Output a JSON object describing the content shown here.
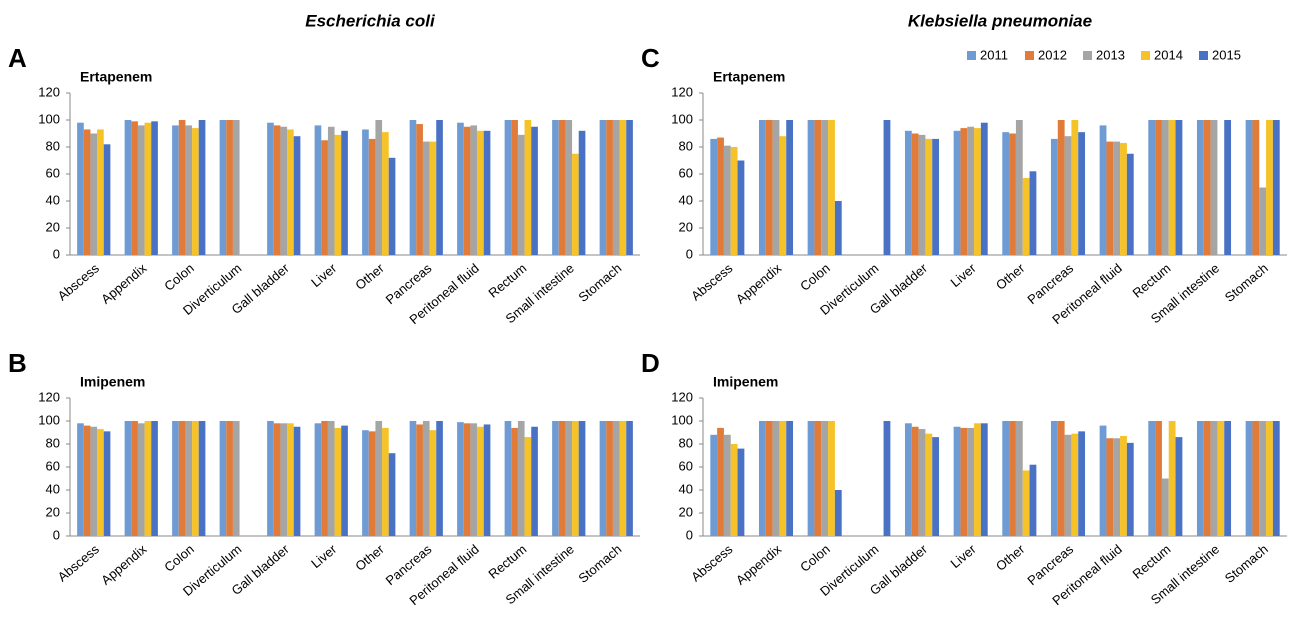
{
  "headers": [
    "Escherichia coli",
    "Klebsiella pneumoniae"
  ],
  "chart_data": [
    {
      "type": "bar",
      "panel": "A",
      "title": "Ertapenem",
      "categories": [
        "Abscess",
        "Appendix",
        "Colon",
        "Diverticulum",
        "Gall bladder",
        "Liver",
        "Other",
        "Pancreas",
        "Peritoneal fluid",
        "Rectum",
        "Small intestine",
        "Stomach"
      ],
      "ylim": [
        0,
        120
      ],
      "yticks": [
        0,
        20,
        40,
        60,
        80,
        100,
        120
      ],
      "series": [
        {
          "name": "2011",
          "color": "#6f9bd4",
          "values": [
            98,
            100,
            96,
            100,
            98,
            96,
            93,
            100,
            98,
            100,
            100,
            100
          ]
        },
        {
          "name": "2012",
          "color": "#e07b39",
          "values": [
            93,
            99,
            100,
            100,
            96,
            85,
            86,
            97,
            95,
            100,
            100,
            100
          ]
        },
        {
          "name": "2013",
          "color": "#a5a5a5",
          "values": [
            90,
            96,
            96,
            100,
            95,
            95,
            100,
            84,
            96,
            89,
            100,
            100
          ]
        },
        {
          "name": "2014",
          "color": "#f5c228",
          "values": [
            93,
            98,
            94,
            null,
            93,
            89,
            91,
            84,
            92,
            100,
            75,
            100
          ]
        },
        {
          "name": "2015",
          "color": "#4a72c4",
          "values": [
            82,
            99,
            100,
            null,
            88,
            92,
            72,
            100,
            92,
            95,
            92,
            100
          ]
        }
      ]
    },
    {
      "type": "bar",
      "panel": "B",
      "title": "Imipenem",
      "categories": [
        "Abscess",
        "Appendix",
        "Colon",
        "Diverticulum",
        "Gall bladder",
        "Liver",
        "Other",
        "Pancreas",
        "Peritoneal fluid",
        "Rectum",
        "Small intestine",
        "Stomach"
      ],
      "ylim": [
        0,
        120
      ],
      "yticks": [
        0,
        20,
        40,
        60,
        80,
        100,
        120
      ],
      "series": [
        {
          "name": "2011",
          "color": "#6f9bd4",
          "values": [
            98,
            100,
            100,
            100,
            100,
            98,
            92,
            100,
            99,
            100,
            100,
            100
          ]
        },
        {
          "name": "2012",
          "color": "#e07b39",
          "values": [
            96,
            100,
            100,
            100,
            98,
            100,
            91,
            97,
            98,
            94,
            100,
            100
          ]
        },
        {
          "name": "2013",
          "color": "#a5a5a5",
          "values": [
            95,
            98,
            100,
            100,
            98,
            100,
            100,
            100,
            98,
            100,
            100,
            100
          ]
        },
        {
          "name": "2014",
          "color": "#f5c228",
          "values": [
            93,
            100,
            100,
            null,
            98,
            94,
            94,
            92,
            95,
            86,
            100,
            100
          ]
        },
        {
          "name": "2015",
          "color": "#4a72c4",
          "values": [
            91,
            100,
            100,
            null,
            95,
            96,
            72,
            100,
            97,
            95,
            100,
            100
          ]
        }
      ]
    },
    {
      "type": "bar",
      "panel": "C",
      "title": "Ertapenem",
      "legend": "top-right",
      "categories": [
        "Abscess",
        "Appendix",
        "Colon",
        "Diverticulum",
        "Gall bladder",
        "Liver",
        "Other",
        "Pancreas",
        "Peritoneal fluid",
        "Rectum",
        "Small intestine",
        "Stomach"
      ],
      "ylim": [
        0,
        120
      ],
      "yticks": [
        0,
        20,
        40,
        60,
        80,
        100,
        120
      ],
      "series": [
        {
          "name": "2011",
          "color": "#6f9bd4",
          "values": [
            86,
            100,
            100,
            null,
            92,
            92,
            91,
            86,
            96,
            100,
            100,
            100
          ]
        },
        {
          "name": "2012",
          "color": "#e07b39",
          "values": [
            87,
            100,
            100,
            null,
            90,
            94,
            90,
            100,
            84,
            100,
            100,
            100
          ]
        },
        {
          "name": "2013",
          "color": "#a5a5a5",
          "values": [
            81,
            100,
            100,
            null,
            89,
            95,
            100,
            88,
            84,
            100,
            100,
            50
          ]
        },
        {
          "name": "2014",
          "color": "#f5c228",
          "values": [
            80,
            88,
            100,
            null,
            86,
            94,
            57,
            100,
            83,
            100,
            null,
            100
          ]
        },
        {
          "name": "2015",
          "color": "#4a72c4",
          "values": [
            70,
            100,
            40,
            100,
            86,
            98,
            62,
            91,
            75,
            100,
            100,
            100
          ]
        }
      ]
    },
    {
      "type": "bar",
      "panel": "D",
      "title": "Imipenem",
      "categories": [
        "Abscess",
        "Appendix",
        "Colon",
        "Diverticulum",
        "Gall bladder",
        "Liver",
        "Other",
        "Pancreas",
        "Peritoneal fluid",
        "Rectum",
        "Small intestine",
        "Stomach"
      ],
      "ylim": [
        0,
        120
      ],
      "yticks": [
        0,
        20,
        40,
        60,
        80,
        100,
        120
      ],
      "series": [
        {
          "name": "2011",
          "color": "#6f9bd4",
          "values": [
            88,
            100,
            100,
            null,
            98,
            95,
            100,
            100,
            96,
            100,
            100,
            100
          ]
        },
        {
          "name": "2012",
          "color": "#e07b39",
          "values": [
            94,
            100,
            100,
            null,
            95,
            94,
            100,
            100,
            85,
            100,
            100,
            100
          ]
        },
        {
          "name": "2013",
          "color": "#a5a5a5",
          "values": [
            88,
            100,
            100,
            null,
            93,
            94,
            100,
            88,
            85,
            50,
            100,
            100
          ]
        },
        {
          "name": "2014",
          "color": "#f5c228",
          "values": [
            80,
            100,
            100,
            null,
            89,
            98,
            57,
            89,
            87,
            100,
            100,
            100
          ]
        },
        {
          "name": "2015",
          "color": "#4a72c4",
          "values": [
            76,
            100,
            40,
            100,
            86,
            98,
            62,
            91,
            81,
            86,
            100,
            100
          ]
        }
      ]
    }
  ]
}
